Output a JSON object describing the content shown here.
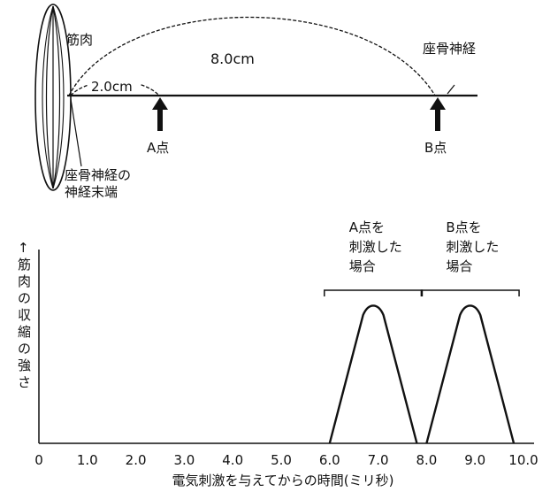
{
  "diagram": {
    "muscle_label": "筋肉",
    "distance_total": "8.0cm",
    "distance_short": "2.0cm",
    "nerve_label": "座骨神経",
    "point_a": "A点",
    "point_b": "B点",
    "nerve_end_line1": "座骨神経の",
    "nerve_end_line2": "神経末端"
  },
  "chart_data": {
    "type": "line",
    "ylabel": "↑筋肉の収縮の強さ",
    "xlabel": "電気刺激を与えてからの時間(ミリ秒)",
    "xlim": [
      0,
      10
    ],
    "x_ticks": [
      "0",
      "1.0",
      "2.0",
      "3.0",
      "4.0",
      "5.0",
      "6.0",
      "7.0",
      "8.0",
      "9.0",
      "10.0"
    ],
    "grid": false,
    "legend": "none",
    "series": [
      {
        "name": "A点を刺激した場合",
        "name_lines": [
          "A点を",
          "刺激した",
          "場合"
        ],
        "x": [
          6.0,
          6.8,
          7.0,
          7.8
        ],
        "y": [
          0,
          1.0,
          1.0,
          0
        ]
      },
      {
        "name": "B点を刺激した場合",
        "name_lines": [
          "B点を",
          "刺激した",
          "場合"
        ],
        "x": [
          8.0,
          8.8,
          9.0,
          9.8
        ],
        "y": [
          0,
          1.0,
          1.0,
          0
        ]
      }
    ]
  }
}
